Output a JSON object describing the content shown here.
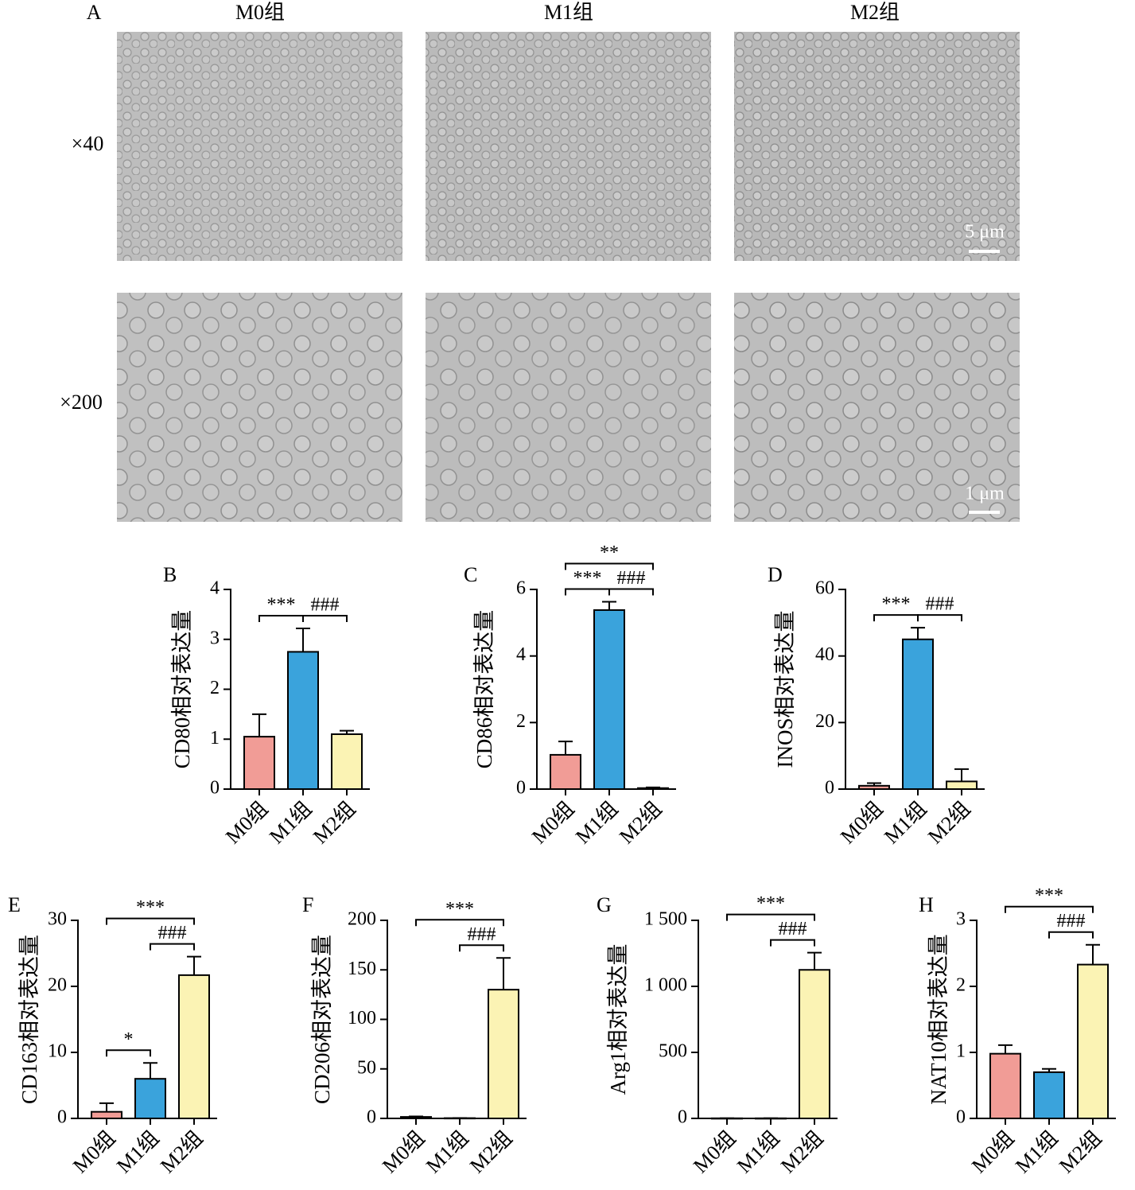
{
  "panel_a": {
    "label": "A",
    "columns": [
      "M0组",
      "M1组",
      "M2组"
    ],
    "rows": [
      "×40",
      "×200"
    ],
    "scale_bars": [
      "5 μm",
      "1 μm"
    ]
  },
  "chart_data": [
    {
      "type": "bar",
      "panel": "B",
      "y_label": "CD80相对表达量",
      "categories": [
        "M0组",
        "M1组",
        "M2组"
      ],
      "values": [
        1.05,
        2.75,
        1.1
      ],
      "errors": [
        0.45,
        0.47,
        0.07
      ],
      "colors": [
        "#f19c96",
        "#3aa3dc",
        "#fbf3b4"
      ],
      "ylim": [
        0,
        4
      ],
      "yticks": [
        0,
        1,
        2,
        3,
        4
      ],
      "annotations": [
        {
          "label": "***",
          "from": "M0组",
          "to": "M1组"
        },
        {
          "label": "###",
          "from": "M1组",
          "to": "M2组"
        }
      ]
    },
    {
      "type": "bar",
      "panel": "C",
      "y_label": "CD86相对表达量",
      "categories": [
        "M0组",
        "M1组",
        "M2组"
      ],
      "values": [
        1.03,
        5.38,
        0.03
      ],
      "errors": [
        0.4,
        0.25,
        0.02
      ],
      "colors": [
        "#f19c96",
        "#3aa3dc",
        "#fbf3b4"
      ],
      "ylim": [
        0,
        6
      ],
      "yticks": [
        0,
        2,
        4,
        6
      ],
      "annotations": [
        {
          "label": "***",
          "from": "M0组",
          "to": "M1组"
        },
        {
          "label": "###",
          "from": "M1组",
          "to": "M2组"
        },
        {
          "label": "**",
          "from": "M0组",
          "to": "M2组"
        }
      ]
    },
    {
      "type": "bar",
      "panel": "D",
      "y_label": "INOS相对表达量",
      "categories": [
        "M0组",
        "M1组",
        "M2组"
      ],
      "values": [
        1,
        45,
        2.3
      ],
      "errors": [
        0.8,
        3.5,
        3.7
      ],
      "colors": [
        "#f19c96",
        "#3aa3dc",
        "#fbf3b4"
      ],
      "ylim": [
        0,
        60
      ],
      "yticks": [
        0,
        20,
        40,
        60
      ],
      "annotations": [
        {
          "label": "***",
          "from": "M0组",
          "to": "M1组"
        },
        {
          "label": "###",
          "from": "M1组",
          "to": "M2组"
        }
      ]
    },
    {
      "type": "bar",
      "panel": "E",
      "y_label": "CD163相对表达量",
      "categories": [
        "M0组",
        "M1组",
        "M2组"
      ],
      "values": [
        1,
        6,
        21.7
      ],
      "errors": [
        1.3,
        2.4,
        2.8
      ],
      "colors": [
        "#f19c96",
        "#3aa3dc",
        "#fbf3b4"
      ],
      "ylim": [
        0,
        30
      ],
      "yticks": [
        0,
        10,
        20,
        30
      ],
      "annotations": [
        {
          "label": "*",
          "from": "M0组",
          "to": "M1组"
        },
        {
          "label": "###",
          "from": "M1组",
          "to": "M2组"
        },
        {
          "label": "***",
          "from": "M0组",
          "to": "M2组"
        }
      ]
    },
    {
      "type": "bar",
      "panel": "F",
      "y_label": "CD206相对表达量",
      "categories": [
        "M0组",
        "M1组",
        "M2组"
      ],
      "values": [
        1.5,
        0.3,
        130
      ],
      "errors": [
        0.5,
        0.1,
        32
      ],
      "colors": [
        "#f19c96",
        "#3aa3dc",
        "#fbf3b4"
      ],
      "ylim": [
        0,
        200
      ],
      "yticks": [
        0,
        50,
        100,
        150,
        200
      ],
      "annotations": [
        {
          "label": "###",
          "from": "M1组",
          "to": "M2组"
        },
        {
          "label": "***",
          "from": "M0组",
          "to": "M2组"
        }
      ]
    },
    {
      "type": "bar",
      "panel": "G",
      "y_label": "Arg1相对表达量",
      "categories": [
        "M0组",
        "M1组",
        "M2组"
      ],
      "values": [
        1,
        1,
        1125
      ],
      "errors": [
        0.3,
        0.3,
        130
      ],
      "colors": [
        "#f19c96",
        "#3aa3dc",
        "#fbf3b4"
      ],
      "ylim": [
        0,
        1500
      ],
      "yticks": [
        0,
        500,
        {
          "value": 1000,
          "label": "1 000"
        },
        {
          "value": 1500,
          "label": "1 500"
        }
      ],
      "annotations": [
        {
          "label": "###",
          "from": "M1组",
          "to": "M2组"
        },
        {
          "label": "***",
          "from": "M0组",
          "to": "M2组"
        }
      ]
    },
    {
      "type": "bar",
      "panel": "H",
      "y_label": "NAT10相对表达量",
      "categories": [
        "M0组",
        "M1组",
        "M2组"
      ],
      "values": [
        0.98,
        0.7,
        2.33
      ],
      "errors": [
        0.13,
        0.05,
        0.3
      ],
      "colors": [
        "#f19c96",
        "#3aa3dc",
        "#fbf3b4"
      ],
      "ylim": [
        0,
        3
      ],
      "yticks": [
        0,
        1,
        2,
        3
      ],
      "annotations": [
        {
          "label": "###",
          "from": "M1组",
          "to": "M2组"
        },
        {
          "label": "***",
          "from": "M0组",
          "to": "M2组"
        }
      ]
    }
  ]
}
